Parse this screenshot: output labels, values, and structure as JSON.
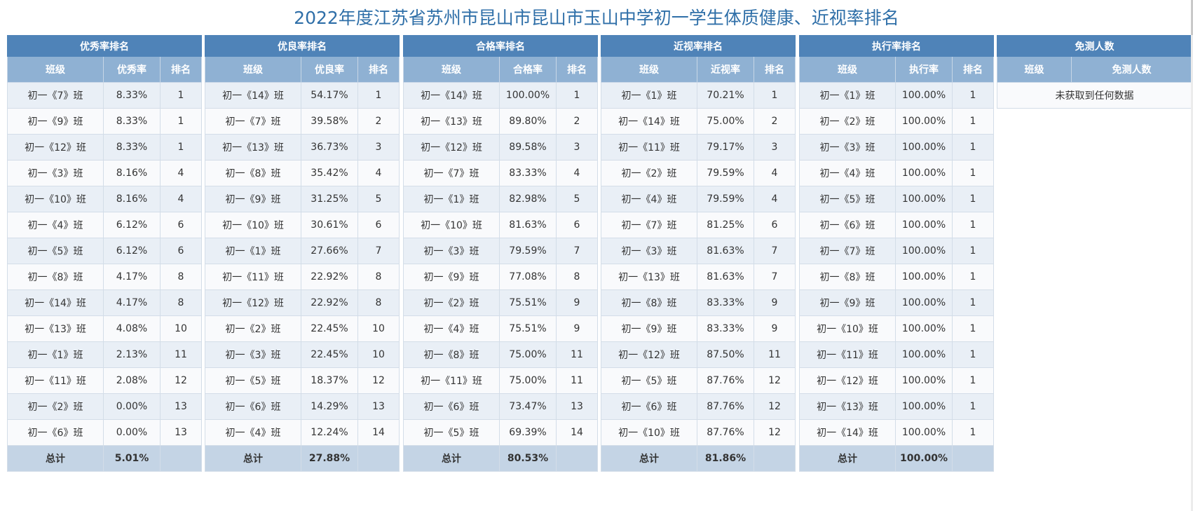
{
  "page": {
    "title": "2022年度江苏省苏州市昆山市昆山市玉山中学初一学生体质健康、近视率排名"
  },
  "colors": {
    "title_bar": "#4f83b8",
    "header_bar": "#8fb1d3",
    "total_row": "#c4d4e5",
    "row_odd": "#e9eff6",
    "row_even": "#f9fafc",
    "title_text": "#2f6fa8"
  },
  "tables": [
    {
      "title": "优秀率排名",
      "columns": [
        "班级",
        "优秀率",
        "排名"
      ],
      "rows": [
        [
          "初一《7》班",
          "8.33%",
          "1"
        ],
        [
          "初一《9》班",
          "8.33%",
          "1"
        ],
        [
          "初一《12》班",
          "8.33%",
          "1"
        ],
        [
          "初一《3》班",
          "8.16%",
          "4"
        ],
        [
          "初一《10》班",
          "8.16%",
          "4"
        ],
        [
          "初一《4》班",
          "6.12%",
          "6"
        ],
        [
          "初一《5》班",
          "6.12%",
          "6"
        ],
        [
          "初一《8》班",
          "4.17%",
          "8"
        ],
        [
          "初一《14》班",
          "4.17%",
          "8"
        ],
        [
          "初一《13》班",
          "4.08%",
          "10"
        ],
        [
          "初一《1》班",
          "2.13%",
          "11"
        ],
        [
          "初一《11》班",
          "2.08%",
          "12"
        ],
        [
          "初一《2》班",
          "0.00%",
          "13"
        ],
        [
          "初一《6》班",
          "0.00%",
          "13"
        ]
      ],
      "total": {
        "label": "总计",
        "value": "5.01%"
      }
    },
    {
      "title": "优良率排名",
      "columns": [
        "班级",
        "优良率",
        "排名"
      ],
      "rows": [
        [
          "初一《14》班",
          "54.17%",
          "1"
        ],
        [
          "初一《7》班",
          "39.58%",
          "2"
        ],
        [
          "初一《13》班",
          "36.73%",
          "3"
        ],
        [
          "初一《8》班",
          "35.42%",
          "4"
        ],
        [
          "初一《9》班",
          "31.25%",
          "5"
        ],
        [
          "初一《10》班",
          "30.61%",
          "6"
        ],
        [
          "初一《1》班",
          "27.66%",
          "7"
        ],
        [
          "初一《11》班",
          "22.92%",
          "8"
        ],
        [
          "初一《12》班",
          "22.92%",
          "8"
        ],
        [
          "初一《2》班",
          "22.45%",
          "10"
        ],
        [
          "初一《3》班",
          "22.45%",
          "10"
        ],
        [
          "初一《5》班",
          "18.37%",
          "12"
        ],
        [
          "初一《6》班",
          "14.29%",
          "13"
        ],
        [
          "初一《4》班",
          "12.24%",
          "14"
        ]
      ],
      "total": {
        "label": "总计",
        "value": "27.88%"
      }
    },
    {
      "title": "合格率排名",
      "columns": [
        "班级",
        "合格率",
        "排名"
      ],
      "rows": [
        [
          "初一《14》班",
          "100.00%",
          "1"
        ],
        [
          "初一《13》班",
          "89.80%",
          "2"
        ],
        [
          "初一《12》班",
          "89.58%",
          "3"
        ],
        [
          "初一《7》班",
          "83.33%",
          "4"
        ],
        [
          "初一《1》班",
          "82.98%",
          "5"
        ],
        [
          "初一《10》班",
          "81.63%",
          "6"
        ],
        [
          "初一《3》班",
          "79.59%",
          "7"
        ],
        [
          "初一《9》班",
          "77.08%",
          "8"
        ],
        [
          "初一《2》班",
          "75.51%",
          "9"
        ],
        [
          "初一《4》班",
          "75.51%",
          "9"
        ],
        [
          "初一《8》班",
          "75.00%",
          "11"
        ],
        [
          "初一《11》班",
          "75.00%",
          "11"
        ],
        [
          "初一《6》班",
          "73.47%",
          "13"
        ],
        [
          "初一《5》班",
          "69.39%",
          "14"
        ]
      ],
      "total": {
        "label": "总计",
        "value": "80.53%"
      }
    },
    {
      "title": "近视率排名",
      "columns": [
        "班级",
        "近视率",
        "排名"
      ],
      "rows": [
        [
          "初一《1》班",
          "70.21%",
          "1"
        ],
        [
          "初一《14》班",
          "75.00%",
          "2"
        ],
        [
          "初一《11》班",
          "79.17%",
          "3"
        ],
        [
          "初一《2》班",
          "79.59%",
          "4"
        ],
        [
          "初一《4》班",
          "79.59%",
          "4"
        ],
        [
          "初一《7》班",
          "81.25%",
          "6"
        ],
        [
          "初一《3》班",
          "81.63%",
          "7"
        ],
        [
          "初一《13》班",
          "81.63%",
          "7"
        ],
        [
          "初一《8》班",
          "83.33%",
          "9"
        ],
        [
          "初一《9》班",
          "83.33%",
          "9"
        ],
        [
          "初一《12》班",
          "87.50%",
          "11"
        ],
        [
          "初一《5》班",
          "87.76%",
          "12"
        ],
        [
          "初一《6》班",
          "87.76%",
          "12"
        ],
        [
          "初一《10》班",
          "87.76%",
          "12"
        ]
      ],
      "total": {
        "label": "总计",
        "value": "81.86%"
      }
    },
    {
      "title": "执行率排名",
      "columns": [
        "班级",
        "执行率",
        "排名"
      ],
      "rows": [
        [
          "初一《1》班",
          "100.00%",
          "1"
        ],
        [
          "初一《2》班",
          "100.00%",
          "1"
        ],
        [
          "初一《3》班",
          "100.00%",
          "1"
        ],
        [
          "初一《4》班",
          "100.00%",
          "1"
        ],
        [
          "初一《5》班",
          "100.00%",
          "1"
        ],
        [
          "初一《6》班",
          "100.00%",
          "1"
        ],
        [
          "初一《7》班",
          "100.00%",
          "1"
        ],
        [
          "初一《8》班",
          "100.00%",
          "1"
        ],
        [
          "初一《9》班",
          "100.00%",
          "1"
        ],
        [
          "初一《10》班",
          "100.00%",
          "1"
        ],
        [
          "初一《11》班",
          "100.00%",
          "1"
        ],
        [
          "初一《12》班",
          "100.00%",
          "1"
        ],
        [
          "初一《13》班",
          "100.00%",
          "1"
        ],
        [
          "初一《14》班",
          "100.00%",
          "1"
        ]
      ],
      "total": {
        "label": "总计",
        "value": "100.00%"
      }
    }
  ],
  "exempt_table": {
    "title": "免测人数",
    "columns": [
      "班级",
      "免测人数"
    ],
    "empty_message": "未获取到任何数据"
  }
}
